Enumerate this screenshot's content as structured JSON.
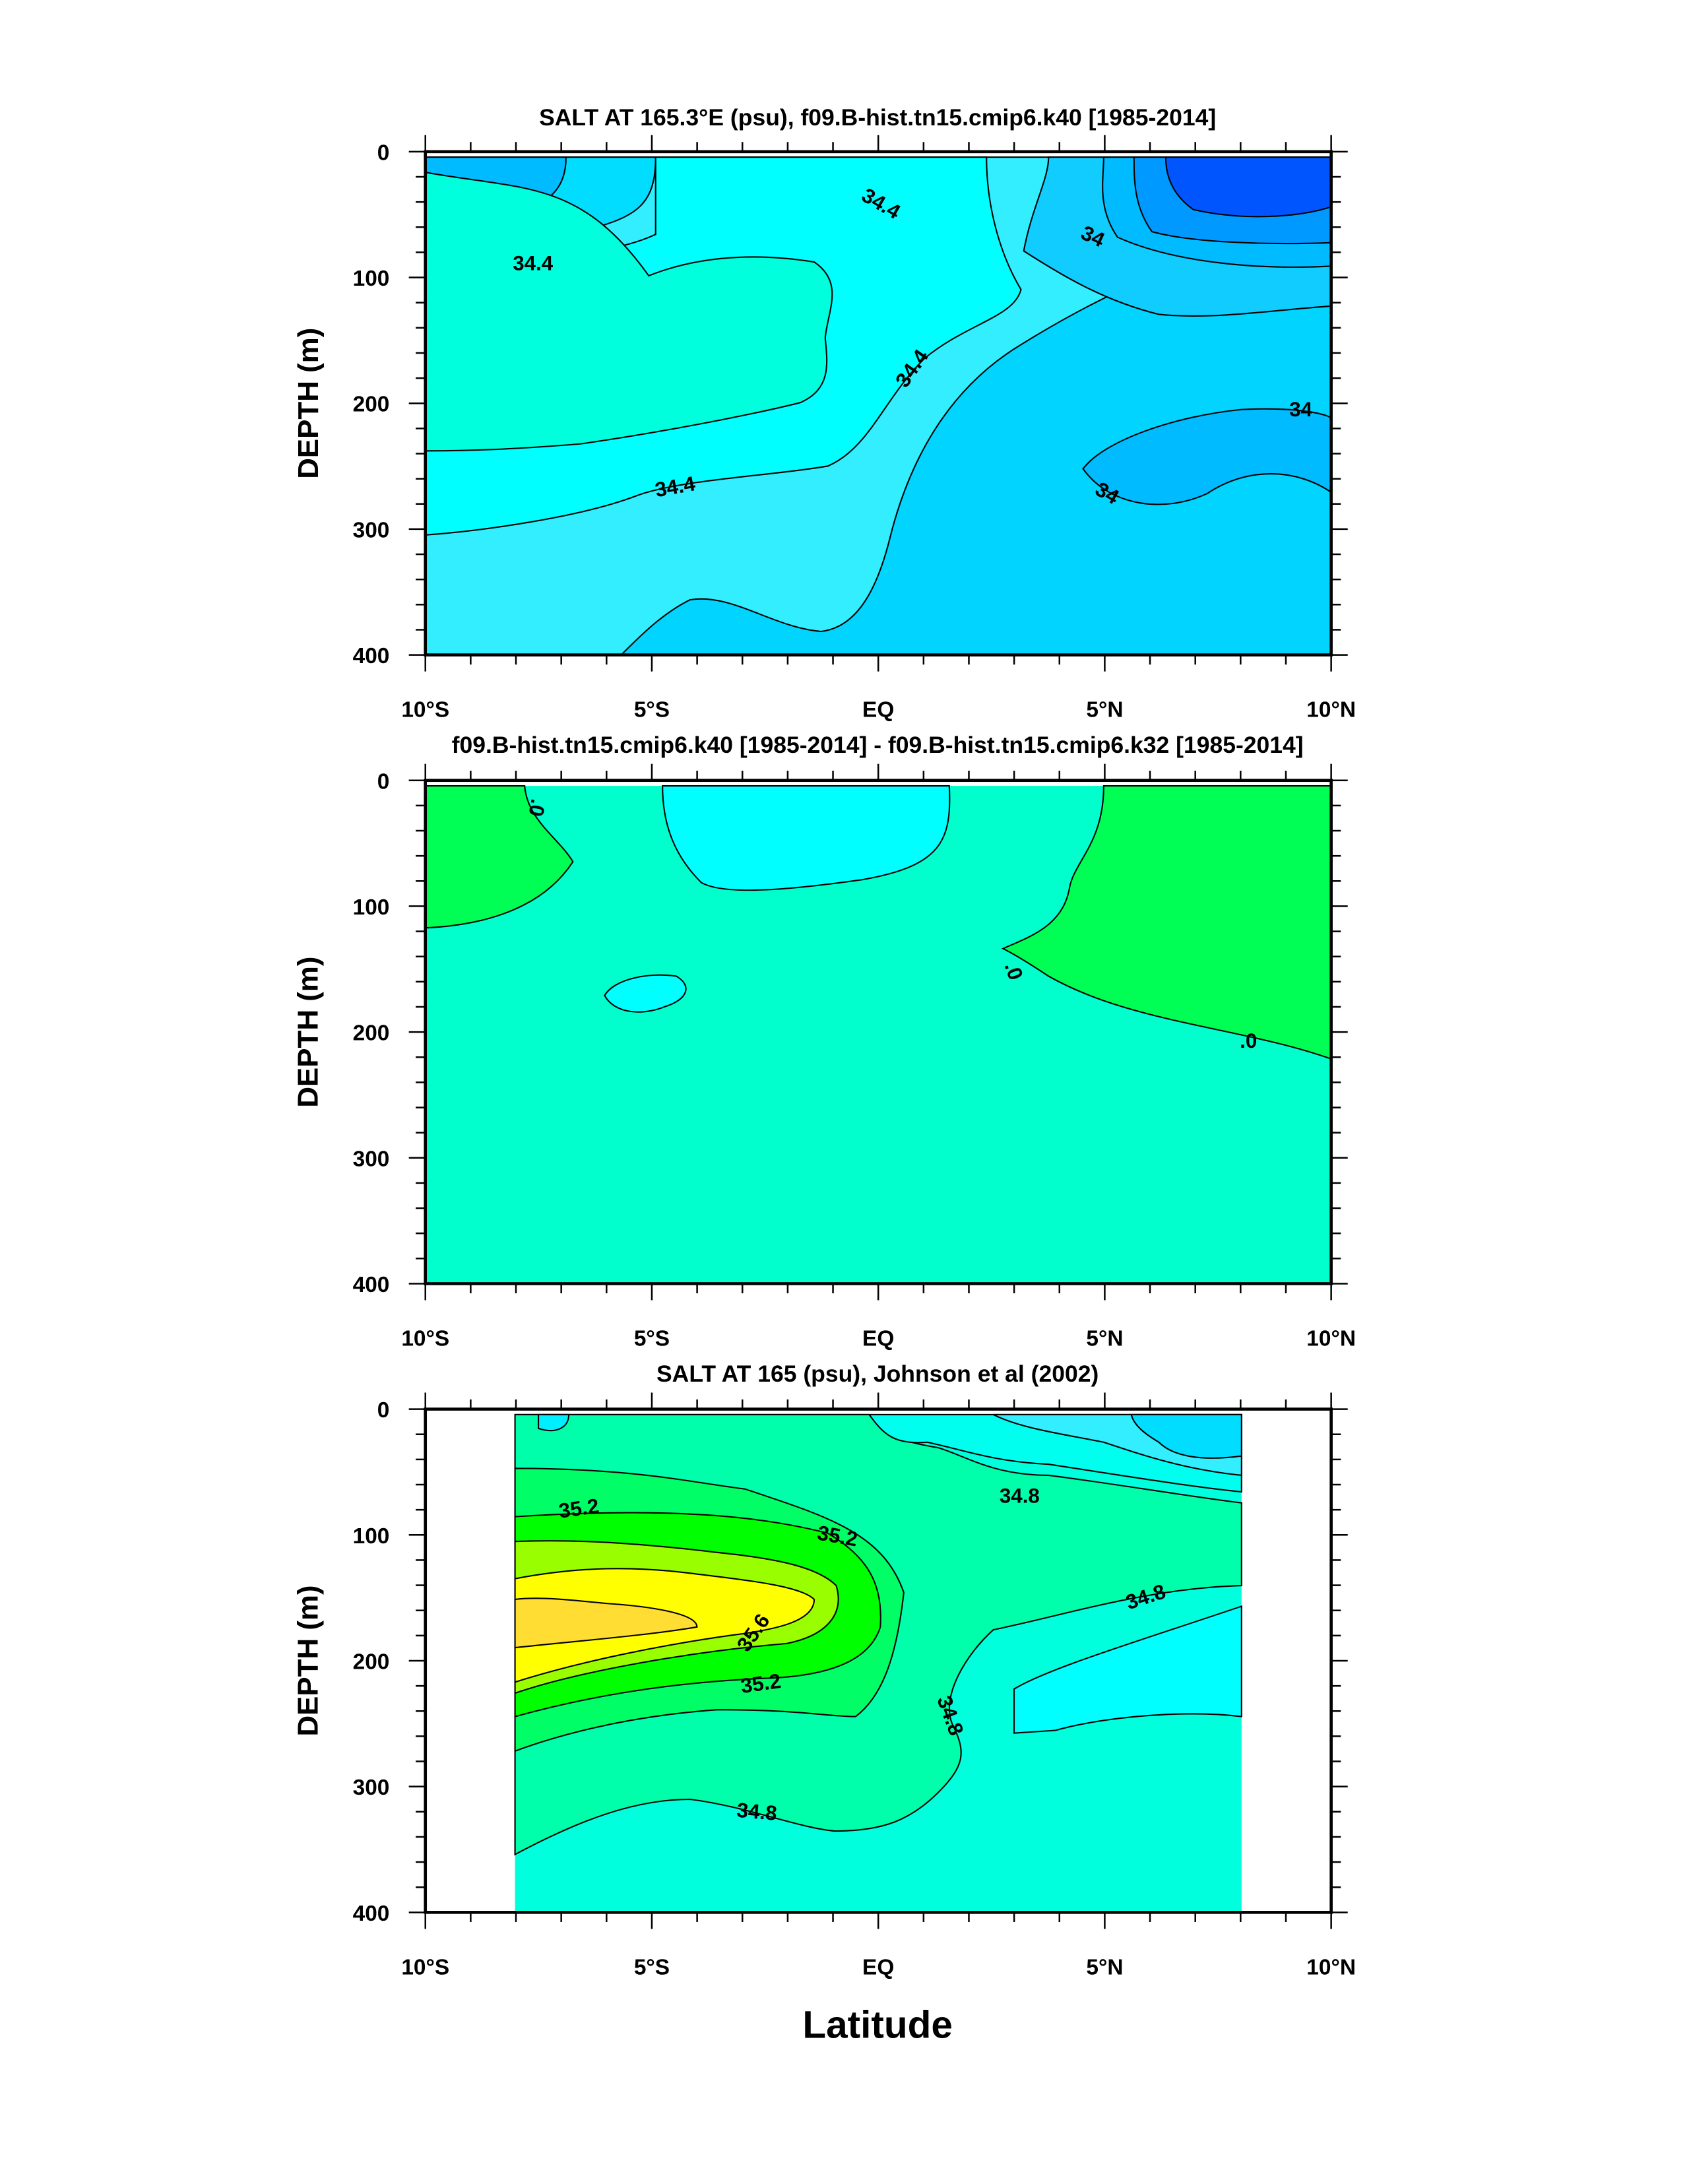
{
  "chart_data": [
    {
      "type": "heatmap",
      "subtype": "filled-contour",
      "title": "SALT AT 165.3°E (psu), f09.B-hist.tn15.cmip6.k40 [1985-2014]",
      "ylabel": "DEPTH (m)",
      "xlabel": "",
      "xlim": [
        -10,
        10
      ],
      "ylim": [
        400,
        0
      ],
      "xticks": [
        -10,
        -5,
        0,
        5,
        10
      ],
      "xtick_labels": [
        "10°S",
        "5°S",
        "EQ",
        "5°N",
        "10°N"
      ],
      "yticks": [
        0,
        100,
        200,
        300,
        400
      ],
      "ytick_labels": [
        "0",
        "100",
        "200",
        "300",
        "400"
      ],
      "contour_labels": [
        "34.4",
        "34.4",
        "34",
        "34.4",
        "34.4",
        "34",
        "34"
      ],
      "colors": [
        "#0055ff",
        "#0099ff",
        "#00bbff",
        "#00d4ff",
        "#33eeff",
        "#00ffff",
        "#00ffdd"
      ]
    },
    {
      "type": "heatmap",
      "subtype": "filled-contour",
      "title": "f09.B-hist.tn15.cmip6.k40 [1985-2014] - f09.B-hist.tn15.cmip6.k32 [1985-2014]",
      "ylabel": "DEPTH (m)",
      "xlabel": "",
      "xlim": [
        -10,
        10
      ],
      "ylim": [
        400,
        0
      ],
      "xticks": [
        -10,
        -5,
        0,
        5,
        10
      ],
      "xtick_labels": [
        "10°S",
        "5°S",
        "EQ",
        "5°N",
        "10°N"
      ],
      "yticks": [
        0,
        100,
        200,
        300,
        400
      ],
      "ytick_labels": [
        "0",
        "100",
        "200",
        "300",
        "400"
      ],
      "contour_labels": [
        ".0",
        ".0",
        ".0"
      ],
      "colors": [
        "#00ffff",
        "#00ffcc",
        "#00ff55"
      ]
    },
    {
      "type": "heatmap",
      "subtype": "filled-contour",
      "title": "SALT AT 165 (psu), Johnson et al (2002)",
      "ylabel": "DEPTH (m)",
      "xlabel": "Latitude",
      "xlim": [
        -10,
        10
      ],
      "ylim": [
        400,
        0
      ],
      "data_xrange": [
        -8,
        8
      ],
      "xticks": [
        -10,
        -5,
        0,
        5,
        10
      ],
      "xtick_labels": [
        "10°S",
        "5°S",
        "EQ",
        "5°N",
        "10°N"
      ],
      "yticks": [
        0,
        100,
        200,
        300,
        400
      ],
      "ytick_labels": [
        "0",
        "100",
        "200",
        "300",
        "400"
      ],
      "contour_labels": [
        "35.2",
        "35.2",
        "34.8",
        "34.8",
        "35.6",
        "35.2",
        "34.8",
        "34.8"
      ],
      "colors": [
        "#00ddff",
        "#33eeff",
        "#00ffff",
        "#00ffdd",
        "#00ffaa",
        "#00ff66",
        "#00ff00",
        "#99ff00",
        "#ffff00",
        "#ffdd33"
      ]
    }
  ]
}
